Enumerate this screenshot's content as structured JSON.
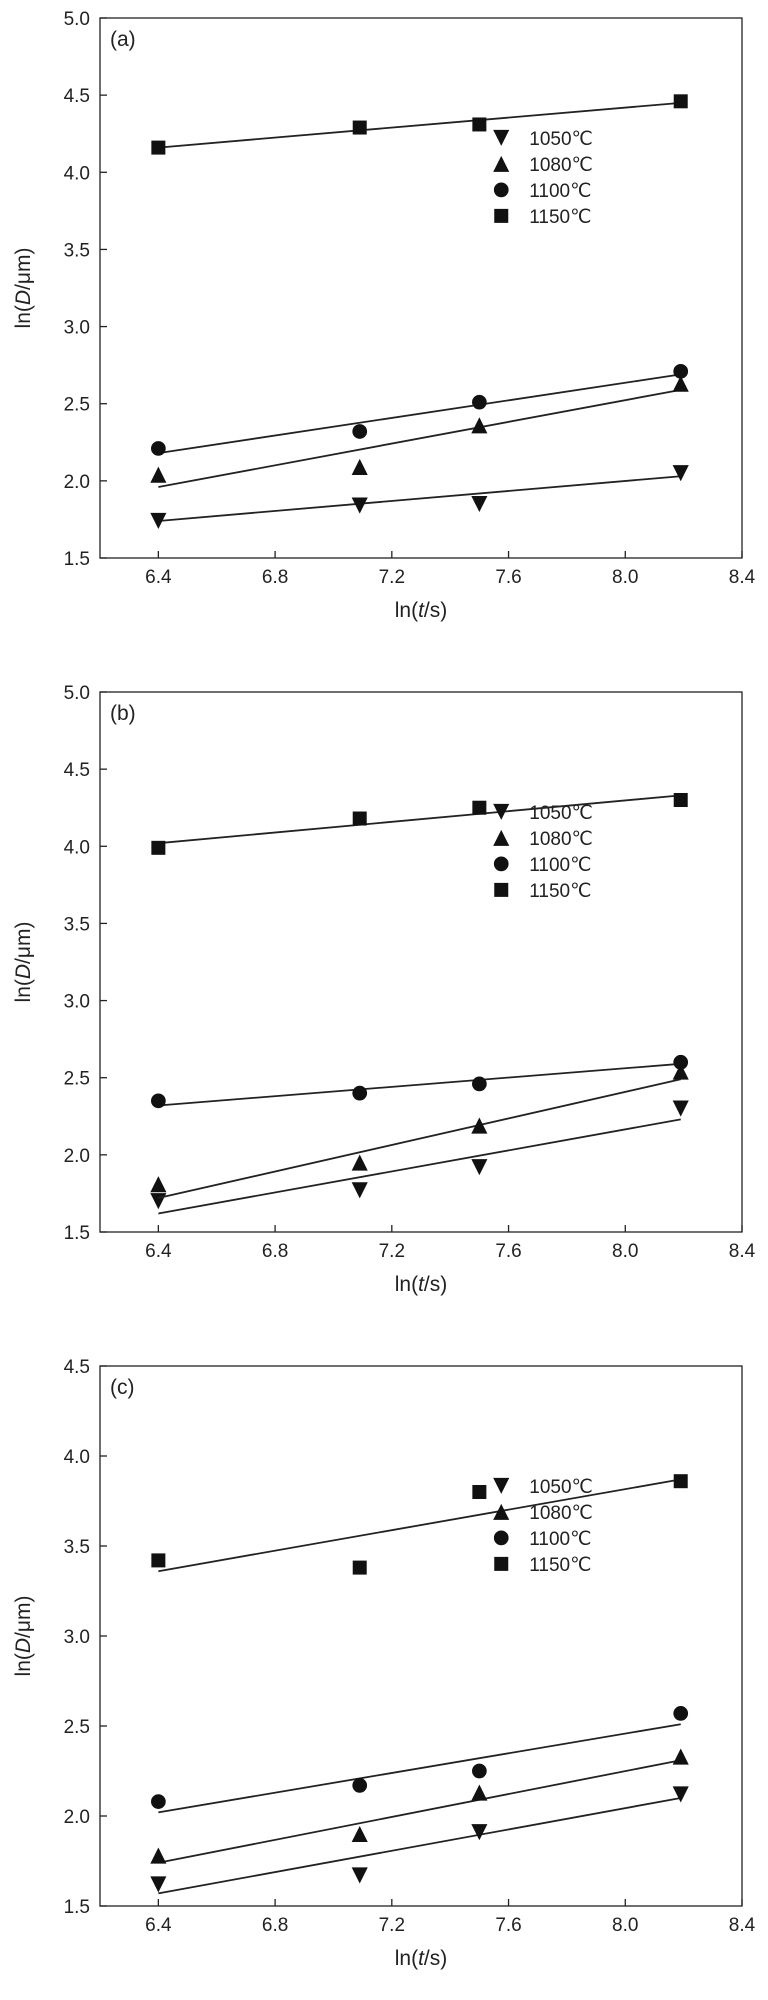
{
  "chart_data": [
    {
      "type": "scatter",
      "panel_label": "(a)",
      "xlabel_prefix": "ln(",
      "xlabel_var": "t",
      "xlabel_suffix": "/s)",
      "ylabel_prefix": "ln(",
      "ylabel_var": "D",
      "ylabel_suffix": "/μm)",
      "xlim": [
        6.2,
        8.4
      ],
      "ylim": [
        1.5,
        5.0
      ],
      "xticks": [
        "6.4",
        "6.8",
        "7.2",
        "7.6",
        "8.0",
        "8.4"
      ],
      "yticks": [
        "1.5",
        "2.0",
        "2.5",
        "3.0",
        "3.5",
        "4.0",
        "4.5",
        "5.0"
      ],
      "legend_position": "right",
      "series": [
        {
          "name": "1050℃",
          "marker": "triangle-down",
          "x": [
            6.4,
            7.09,
            7.5,
            8.19
          ],
          "y": [
            1.74,
            1.84,
            1.85,
            2.05
          ],
          "fit": [
            [
              6.4,
              1.74
            ],
            [
              8.19,
              2.03
            ]
          ]
        },
        {
          "name": "1080℃",
          "marker": "triangle-up",
          "x": [
            6.4,
            7.09,
            7.5,
            8.19
          ],
          "y": [
            2.04,
            2.09,
            2.36,
            2.63
          ],
          "fit": [
            [
              6.4,
              1.96
            ],
            [
              8.19,
              2.59
            ]
          ]
        },
        {
          "name": "1100℃",
          "marker": "circle",
          "x": [
            6.4,
            7.09,
            7.5,
            8.19
          ],
          "y": [
            2.21,
            2.32,
            2.51,
            2.71
          ],
          "fit": [
            [
              6.4,
              2.18
            ],
            [
              8.19,
              2.69
            ]
          ]
        },
        {
          "name": "1150℃",
          "marker": "square",
          "x": [
            6.4,
            7.09,
            7.5,
            8.19
          ],
          "y": [
            4.16,
            4.29,
            4.31,
            4.46
          ],
          "fit": [
            [
              6.4,
              4.16
            ],
            [
              8.19,
              4.45
            ]
          ]
        }
      ]
    },
    {
      "type": "scatter",
      "panel_label": "(b)",
      "xlabel_prefix": "ln(",
      "xlabel_var": "t",
      "xlabel_suffix": "/s)",
      "ylabel_prefix": "ln(",
      "ylabel_var": "D",
      "ylabel_suffix": "/μm)",
      "xlim": [
        6.2,
        8.4
      ],
      "ylim": [
        1.5,
        5.0
      ],
      "xticks": [
        "6.4",
        "6.8",
        "7.2",
        "7.6",
        "8.0",
        "8.4"
      ],
      "yticks": [
        "1.5",
        "2.0",
        "2.5",
        "3.0",
        "3.5",
        "4.0",
        "4.5",
        "5.0"
      ],
      "legend_position": "right",
      "series": [
        {
          "name": "1050℃",
          "marker": "triangle-down",
          "x": [
            6.4,
            7.09,
            7.5,
            8.19
          ],
          "y": [
            1.7,
            1.77,
            1.92,
            2.3
          ],
          "fit": [
            [
              6.4,
              1.62
            ],
            [
              8.19,
              2.23
            ]
          ]
        },
        {
          "name": "1080℃",
          "marker": "triangle-up",
          "x": [
            6.4,
            7.09,
            7.5,
            8.19
          ],
          "y": [
            1.81,
            1.95,
            2.19,
            2.54
          ],
          "fit": [
            [
              6.4,
              1.72
            ],
            [
              8.19,
              2.49
            ]
          ]
        },
        {
          "name": "1100℃",
          "marker": "circle",
          "x": [
            6.4,
            7.09,
            7.5,
            8.19
          ],
          "y": [
            2.35,
            2.4,
            2.46,
            2.6
          ],
          "fit": [
            [
              6.4,
              2.32
            ],
            [
              8.19,
              2.59
            ]
          ]
        },
        {
          "name": "1150℃",
          "marker": "square",
          "x": [
            6.4,
            7.09,
            7.5,
            8.19
          ],
          "y": [
            3.99,
            4.18,
            4.25,
            4.3
          ],
          "fit": [
            [
              6.4,
              4.02
            ],
            [
              8.19,
              4.33
            ]
          ]
        }
      ]
    },
    {
      "type": "scatter",
      "panel_label": "(c)",
      "xlabel_prefix": "ln(",
      "xlabel_var": "t",
      "xlabel_suffix": "/s)",
      "ylabel_prefix": "ln(",
      "ylabel_var": "D",
      "ylabel_suffix": "/μm)",
      "xlim": [
        6.2,
        8.4
      ],
      "ylim": [
        1.5,
        4.5
      ],
      "xticks": [
        "6.4",
        "6.8",
        "7.2",
        "7.6",
        "8.0",
        "8.4"
      ],
      "yticks": [
        "1.5",
        "2.0",
        "2.5",
        "3.0",
        "3.5",
        "4.0",
        "4.5"
      ],
      "legend_position": "right",
      "series": [
        {
          "name": "1050℃",
          "marker": "triangle-down",
          "x": [
            6.4,
            7.09,
            7.5,
            8.19
          ],
          "y": [
            1.62,
            1.67,
            1.91,
            2.12
          ],
          "fit": [
            [
              6.4,
              1.57
            ],
            [
              8.19,
              2.1
            ]
          ]
        },
        {
          "name": "1080℃",
          "marker": "triangle-up",
          "x": [
            6.4,
            7.09,
            7.5,
            8.19
          ],
          "y": [
            1.78,
            1.9,
            2.13,
            2.33
          ],
          "fit": [
            [
              6.4,
              1.74
            ],
            [
              8.19,
              2.31
            ]
          ]
        },
        {
          "name": "1100℃",
          "marker": "circle",
          "x": [
            6.4,
            7.09,
            7.5,
            8.19
          ],
          "y": [
            2.08,
            2.17,
            2.25,
            2.57
          ],
          "fit": [
            [
              6.4,
              2.02
            ],
            [
              8.19,
              2.51
            ]
          ]
        },
        {
          "name": "1150℃",
          "marker": "square",
          "x": [
            6.4,
            7.09,
            7.5,
            8.19
          ],
          "y": [
            3.42,
            3.38,
            3.8,
            3.86
          ],
          "fit": [
            [
              6.4,
              3.36
            ],
            [
              8.19,
              3.87
            ]
          ]
        }
      ]
    }
  ]
}
